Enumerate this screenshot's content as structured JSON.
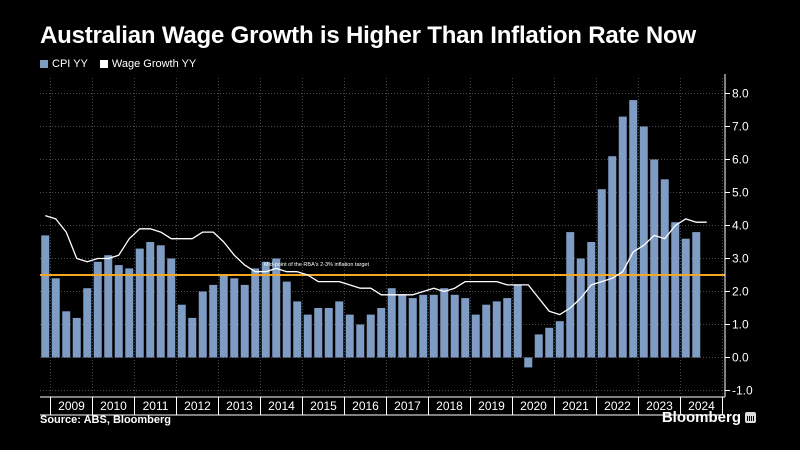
{
  "title": "Australian Wage Growth is Higher Than Inflation Rate Now",
  "source": "Source: ABS, Bloomberg",
  "brand": "Bloomberg",
  "colors": {
    "bar": "#7f9cc5",
    "line": "#ffffff",
    "target": "#f5a623",
    "background": "#000000"
  },
  "chart_data": {
    "type": "bar",
    "title": "Australian Wage Growth is Higher Than Inflation Rate Now",
    "ylim": [
      -1.0,
      8.5
    ],
    "y_ticks": [
      -1.0,
      0.0,
      1.0,
      2.0,
      3.0,
      4.0,
      5.0,
      6.0,
      7.0,
      8.0
    ],
    "y_tick_labels": [
      "-1.0",
      "0.0",
      "1.0",
      "2.0",
      "3.0",
      "4.0",
      "5.0",
      "6.0",
      "7.0",
      "8.0"
    ],
    "y_axis_side": "right",
    "x_year_labels": [
      "2009",
      "2010",
      "2011",
      "2012",
      "2013",
      "2014",
      "2015",
      "2016",
      "2017",
      "2018",
      "2019",
      "2020",
      "2021",
      "2022",
      "2023",
      "2024"
    ],
    "frequency": "quarterly",
    "start": "2008 Q4",
    "grid": true,
    "legend_placement": "top-left",
    "categories": [
      "2008 Q4",
      "2009 Q1",
      "2009 Q2",
      "2009 Q3",
      "2009 Q4",
      "2010 Q1",
      "2010 Q2",
      "2010 Q3",
      "2010 Q4",
      "2011 Q1",
      "2011 Q2",
      "2011 Q3",
      "2011 Q4",
      "2012 Q1",
      "2012 Q2",
      "2012 Q3",
      "2012 Q4",
      "2013 Q1",
      "2013 Q2",
      "2013 Q3",
      "2013 Q4",
      "2014 Q1",
      "2014 Q2",
      "2014 Q3",
      "2014 Q4",
      "2015 Q1",
      "2015 Q2",
      "2015 Q3",
      "2015 Q4",
      "2016 Q1",
      "2016 Q2",
      "2016 Q3",
      "2016 Q4",
      "2017 Q1",
      "2017 Q2",
      "2017 Q3",
      "2017 Q4",
      "2018 Q1",
      "2018 Q2",
      "2018 Q3",
      "2018 Q4",
      "2019 Q1",
      "2019 Q2",
      "2019 Q3",
      "2019 Q4",
      "2020 Q1",
      "2020 Q2",
      "2020 Q3",
      "2020 Q4",
      "2021 Q1",
      "2021 Q2",
      "2021 Q3",
      "2021 Q4",
      "2022 Q1",
      "2022 Q2",
      "2022 Q3",
      "2022 Q4",
      "2023 Q1",
      "2023 Q2",
      "2023 Q3",
      "2023 Q4",
      "2024 Q1",
      "2024 Q2",
      "2024 Q3"
    ],
    "series": [
      {
        "name": "CPI YY",
        "type": "bar",
        "values": [
          3.7,
          2.4,
          1.4,
          1.2,
          2.1,
          2.9,
          3.1,
          2.8,
          2.7,
          3.3,
          3.5,
          3.4,
          3.0,
          1.6,
          1.2,
          2.0,
          2.2,
          2.5,
          2.4,
          2.2,
          2.7,
          2.9,
          3.0,
          2.3,
          1.7,
          1.3,
          1.5,
          1.5,
          1.7,
          1.3,
          1.0,
          1.3,
          1.5,
          2.1,
          1.9,
          1.8,
          1.9,
          1.9,
          2.1,
          1.9,
          1.8,
          1.3,
          1.6,
          1.7,
          1.8,
          2.2,
          -0.3,
          0.7,
          0.9,
          1.1,
          3.8,
          3.0,
          3.5,
          5.1,
          6.1,
          7.3,
          7.8,
          7.0,
          6.0,
          5.4,
          4.1,
          3.6,
          3.8,
          null
        ]
      },
      {
        "name": "Wage Growth YY",
        "type": "line",
        "values": [
          4.3,
          4.2,
          3.8,
          3.0,
          2.9,
          3.0,
          3.0,
          3.1,
          3.6,
          3.9,
          3.9,
          3.8,
          3.6,
          3.6,
          3.6,
          3.8,
          3.8,
          3.5,
          3.1,
          2.8,
          2.6,
          2.6,
          2.7,
          2.6,
          2.6,
          2.5,
          2.3,
          2.3,
          2.3,
          2.2,
          2.1,
          2.1,
          1.9,
          1.9,
          1.9,
          1.9,
          2.0,
          2.1,
          2.0,
          2.1,
          2.3,
          2.3,
          2.3,
          2.3,
          2.2,
          2.2,
          2.2,
          1.8,
          1.4,
          1.3,
          1.5,
          1.8,
          2.2,
          2.3,
          2.4,
          2.6,
          3.2,
          3.4,
          3.7,
          3.6,
          4.0,
          4.2,
          4.1,
          4.1
        ]
      }
    ],
    "annotations": [
      {
        "text": "Mid-point of the RBA's 2-3% inflation target",
        "y": 2.5
      }
    ]
  }
}
